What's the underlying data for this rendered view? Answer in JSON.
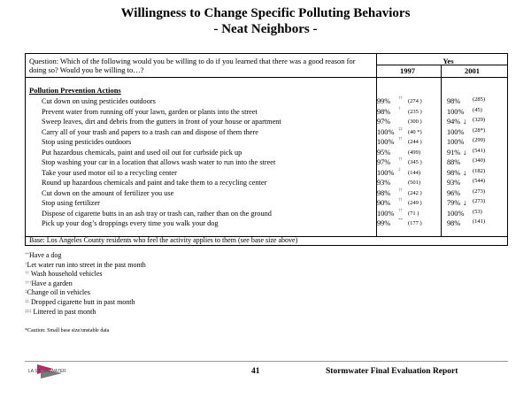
{
  "title": "Willingness to Change Specific Polluting Behaviors",
  "subtitle": "- Neat Neighbors -",
  "table": {
    "question": "Question:  Which of the following would you be willing to do if you learned that there was a good reason for doing so?  Would you be willing to…?",
    "yes_header": "Yes",
    "years": [
      "1997",
      "2001"
    ],
    "section_label": "Pollution Prevention Actions",
    "rows": [
      {
        "label": "Cut down on using pesticides outdoors",
        "v1997": "99%",
        "mark1997": "††",
        "base1997": "(274 )",
        "v2001": "98%",
        "arrow": "",
        "base2001": "(285)"
      },
      {
        "label": "Prevent water from running off your lawn, garden or plants into the street",
        "v1997": "98%",
        "mark1997": "†",
        "base1997": "(235 )",
        "v2001": "100%",
        "arrow": "",
        "base2001": "(45)"
      },
      {
        "label": "Sweep leaves, dirt and debris from the gutters in front of your house or apartment",
        "v1997": "97%",
        "mark1997": "",
        "base1997": "(300 )",
        "v2001": "94%",
        "arrow": "↓",
        "base2001": "(329)"
      },
      {
        "label": "Carry all of your trash and papers to a trash can and dispose of them there",
        "v1997": "100%",
        "mark1997": "‡‡",
        "base1997": "(40 *)",
        "v2001": "100%",
        "arrow": "",
        "base2001": "(28*)"
      },
      {
        "label": "Stop using pesticides outdoors",
        "v1997": "100%",
        "mark1997": "††",
        "base1997": "(244 )",
        "v2001": "100%",
        "arrow": "",
        "base2001": "(299)"
      },
      {
        "label": "Put hazardous chemicals, paint and used oil out for curbside pick up",
        "v1997": "95%",
        "mark1997": "",
        "base1997": "(499)",
        "v2001": "91%",
        "arrow": "↓",
        "base2001": "(541)"
      },
      {
        "label": "Stop washing your car in a location that allows wash water to run into the street",
        "v1997": "97%",
        "mark1997": "††",
        "base1997": "(345 )",
        "v2001": "88%",
        "arrow": "",
        "base2001": "(340)"
      },
      {
        "label": "Take your used motor oil to a recycling center",
        "v1997": "100%",
        "mark1997": "‡",
        "base1997": "(144)",
        "v2001": "98%",
        "arrow": "↓",
        "base2001": "(182)"
      },
      {
        "label": "Round up hazardous chemicals and paint and take them to a recycling center",
        "v1997": "93%",
        "mark1997": "",
        "base1997": "(501)",
        "v2001": "93%",
        "arrow": "",
        "base2001": "(544)"
      },
      {
        "label": "Cut down on the amount of fertilizer you use",
        "v1997": "98%",
        "mark1997": "††",
        "base1997": "(242 )",
        "v2001": "96%",
        "arrow": "",
        "base2001": "(273)"
      },
      {
        "label": "Stop using fertilizer",
        "v1997": "90%",
        "mark1997": "††",
        "base1997": "(249 )",
        "v2001": "79%",
        "arrow": "↓",
        "base2001": "(273)"
      },
      {
        "label": "Dispose of cigarette butts in an ash tray or trash can, rather than on the ground",
        "v1997": "100%",
        "mark1997": "††",
        "base1997": "(71 )",
        "v2001": "100%",
        "arrow": "",
        "base2001": "(53)"
      },
      {
        "label": "Pick up your dog’s droppings every time you walk your dog",
        "v1997": "99%",
        "mark1997": "**",
        "base1997": "(177 )",
        "v2001": "98%",
        "arrow": "",
        "base2001": "(141)"
      }
    ],
    "base_note": "Base:  Los Angeles County residents who feel the activity applies to them  (see base size above)"
  },
  "notes": [
    {
      "mark": "**",
      "text": "Have a dog"
    },
    {
      "mark": "†",
      "text": "Let water run into street in the past month"
    },
    {
      "mark": "††",
      "text": " Wash household vehicles"
    },
    {
      "mark": "†††",
      "text": "Have a garden"
    },
    {
      "mark": "‡",
      "text": "Change oil in vehicles"
    },
    {
      "mark": "‡‡",
      "text": " Dropped cigarette butt in past month"
    },
    {
      "mark": "‡‡‡",
      "text": " Littered in past month"
    }
  ],
  "caution": "*Caution: Small base size/unstable data",
  "footer": {
    "page_number": "41",
    "report_title": "Stormwater Final Evaluation Report",
    "logo_text": "LA STORMWATER"
  },
  "colors": {
    "logo_accent": "#c0286a",
    "logo_dark": "#444444"
  }
}
